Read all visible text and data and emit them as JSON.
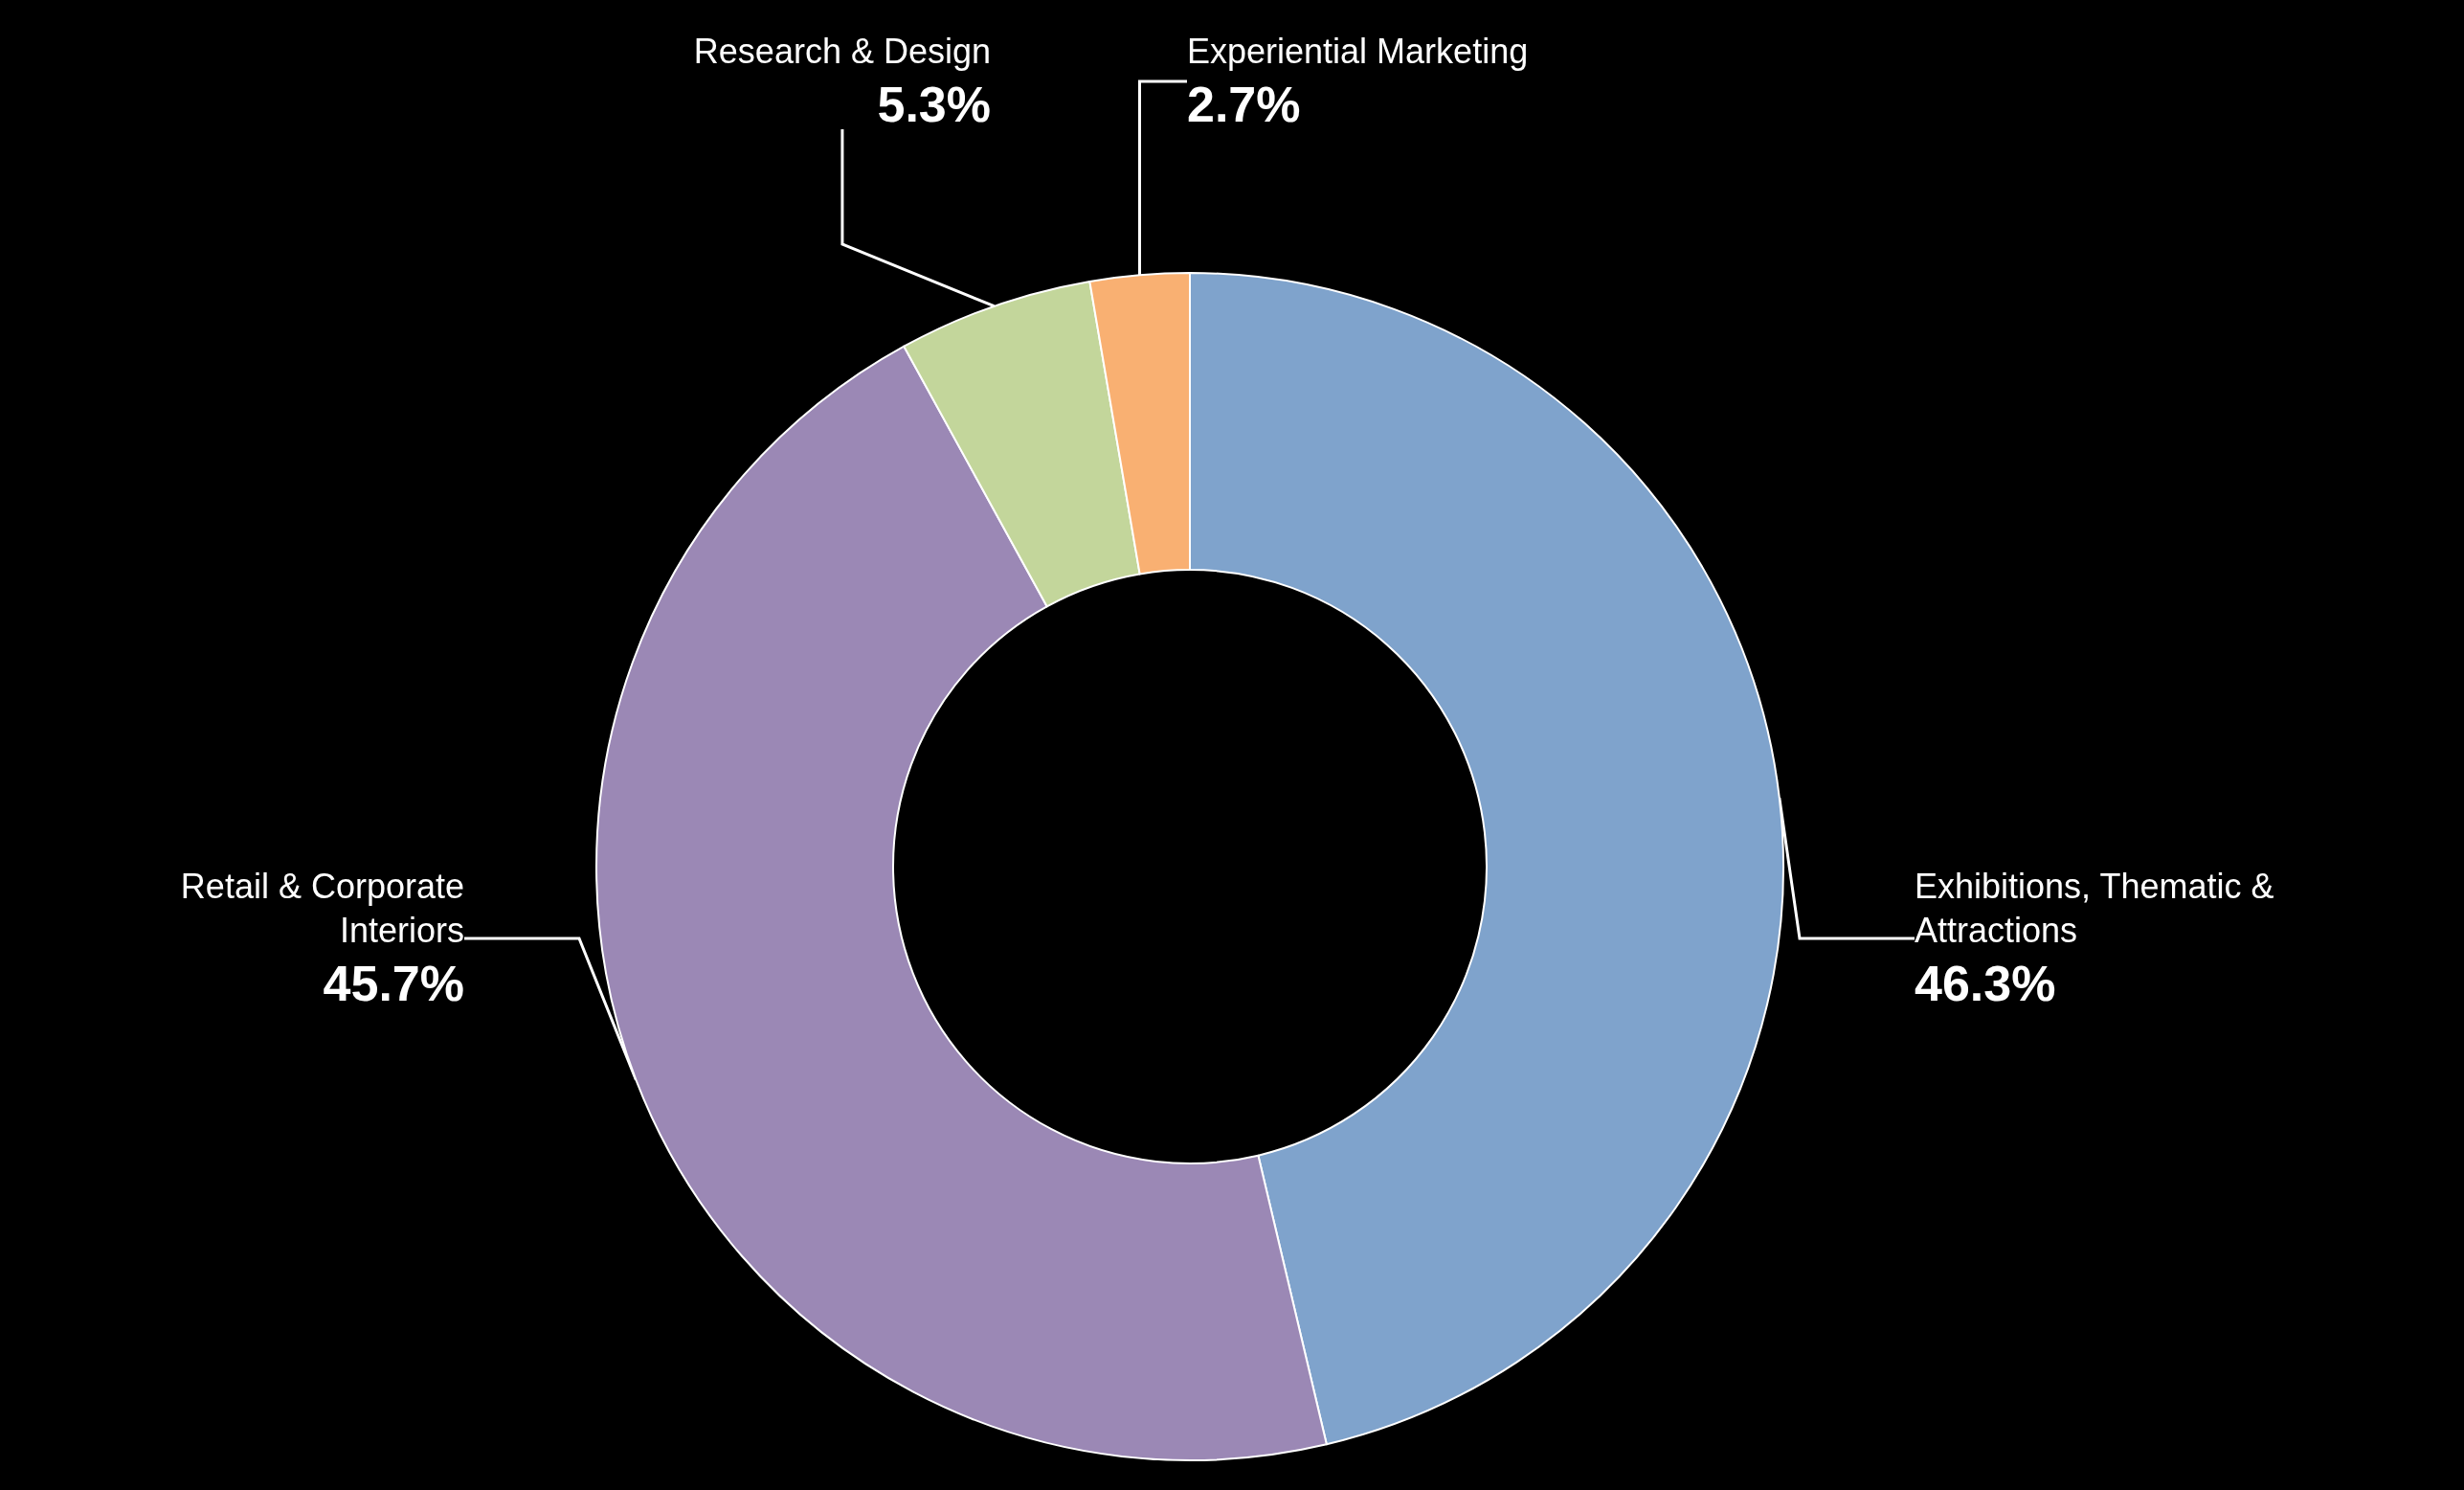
{
  "chart_data": {
    "type": "donut",
    "categories": [
      "Exhibitions, Thematic & Attractions",
      "Retail & Corporate Interiors",
      "Research & Design",
      "Experiential Marketing"
    ],
    "values": [
      46.3,
      45.7,
      5.3,
      2.7
    ],
    "colors": [
      "#7fa3cc",
      "#9b88b5",
      "#c3d69b",
      "#f9b072"
    ],
    "value_labels": [
      "46.3%",
      "45.7%",
      "5.3%",
      "2.7%"
    ],
    "legend": false
  }
}
